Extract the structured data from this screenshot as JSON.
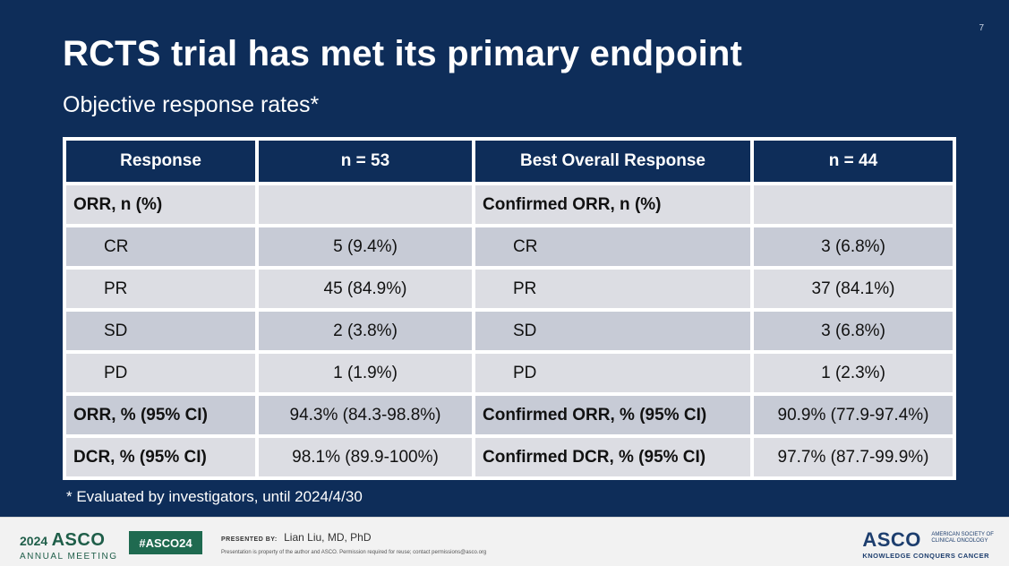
{
  "slide": {
    "number": "7",
    "title": "RCTS trial has met its primary endpoint",
    "subtitle": "Objective response rates*",
    "footnote": "* Evaluated by investigators, until 2024/4/30"
  },
  "table": {
    "headers": [
      "Response",
      "n = 53",
      "Best Overall Response",
      "n = 44"
    ],
    "rows": [
      {
        "left_label": "ORR, n (%)",
        "left_value": "",
        "right_label": "Confirmed ORR, n (%)",
        "right_value": ""
      },
      {
        "left_label": "CR",
        "left_value": "5 (9.4%)",
        "right_label": "CR",
        "right_value": "3 (6.8%)"
      },
      {
        "left_label": "PR",
        "left_value": "45 (84.9%)",
        "right_label": "PR",
        "right_value": "37 (84.1%)"
      },
      {
        "left_label": "SD",
        "left_value": "2 (3.8%)",
        "right_label": "SD",
        "right_value": "3 (6.8%)"
      },
      {
        "left_label": "PD",
        "left_value": "1 (1.9%)",
        "right_label": "PD",
        "right_value": "1 (2.3%)"
      },
      {
        "left_label": "ORR, % (95% CI)",
        "left_value": "94.3% (84.3-98.8%)",
        "right_label": "Confirmed ORR, % (95% CI)",
        "right_value": "90.9% (77.9-97.4%)"
      },
      {
        "left_label": "DCR, % (95% CI)",
        "left_value": "98.1% (89.9-100%)",
        "right_label": "Confirmed DCR, % (95% CI)",
        "right_value": "97.7%  (87.7-99.9%)"
      }
    ]
  },
  "footer": {
    "meeting_year": "2024",
    "meeting_brand": "ASCO",
    "meeting_name": "ANNUAL MEETING",
    "hashtag": "#ASCO24",
    "presented_by_label": "PRESENTED BY:",
    "presenter": "Lian Liu, MD, PhD",
    "permission_note": "Presentation is property of the author and ASCO. Permission required for reuse; contact permissions@asco.org",
    "org_logo": "ASCO",
    "org_name": "AMERICAN SOCIETY OF CLINICAL ONCOLOGY",
    "org_tagline": "KNOWLEDGE CONQUERS CANCER"
  },
  "colors": {
    "background": "#0e2d59",
    "header_cell": "#0e2d59",
    "row_light": "#dcdde3",
    "row_dark": "#c7cbd6",
    "asco_green": "#1f6a50"
  }
}
